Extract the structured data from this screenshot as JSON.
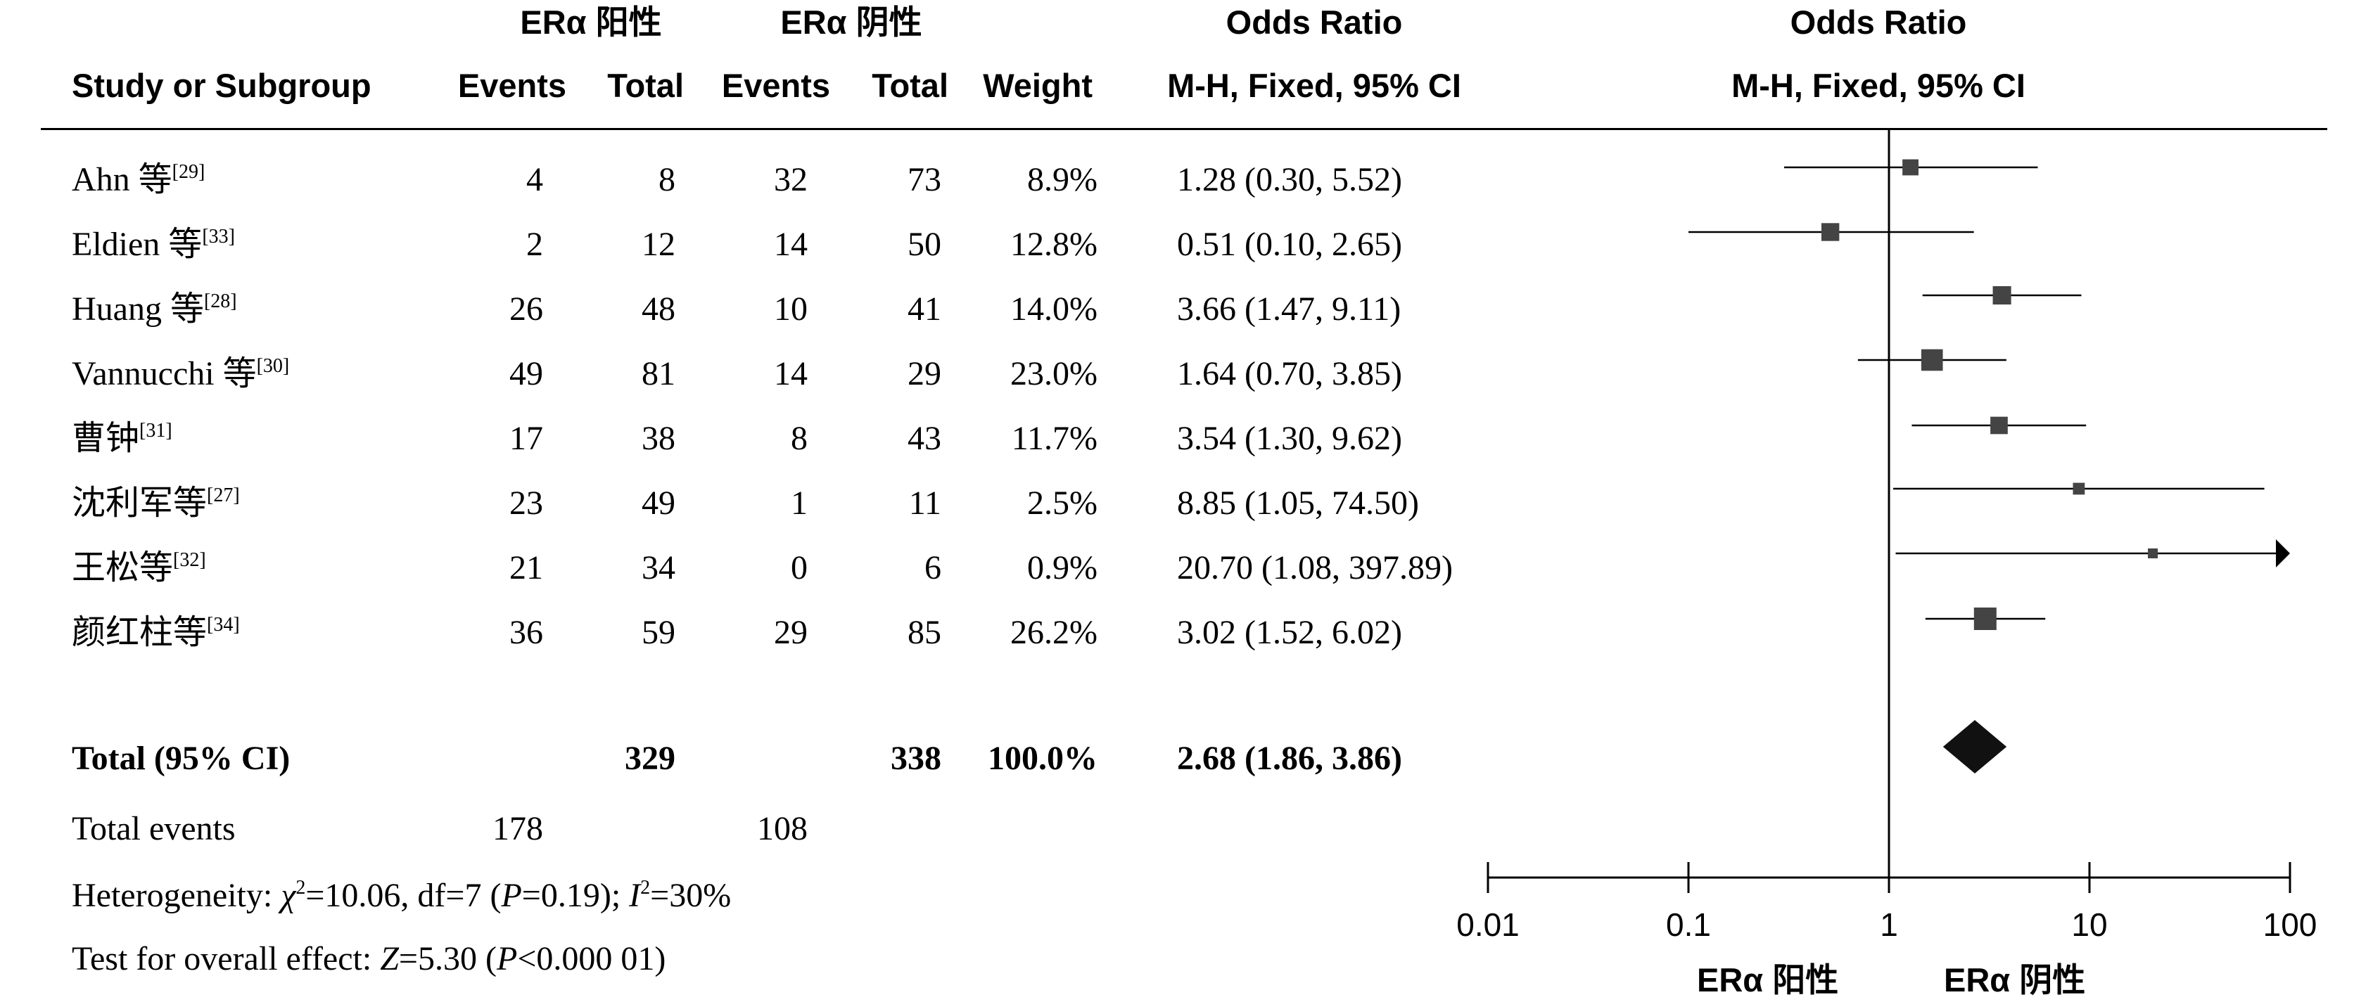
{
  "headers": {
    "group1_top": "ERα 阳性",
    "group2_top": "ERα 阴性",
    "or_top": "Odds Ratio",
    "study": "Study or Subgroup",
    "events1": "Events",
    "total1": "Total",
    "events2": "Events",
    "total2": "Total",
    "weight": "Weight",
    "or_method": "M-H, Fixed, 95% CI",
    "plot_top": "Odds Ratio",
    "plot_method": "M-H, Fixed, 95% CI"
  },
  "studies": [
    {
      "name": "Ahn 等",
      "ref": "[29]",
      "events1": "4",
      "total1": "8",
      "events2": "32",
      "total2": "73",
      "weight": "8.9%",
      "ci": "1.28 (0.30, 5.52)"
    },
    {
      "name": "Eldien 等",
      "ref": "[33]",
      "events1": "2",
      "total1": "12",
      "events2": "14",
      "total2": "50",
      "weight": "12.8%",
      "ci": "0.51 (0.10, 2.65)"
    },
    {
      "name": "Huang 等",
      "ref": "[28]",
      "events1": "26",
      "total1": "48",
      "events2": "10",
      "total2": "41",
      "weight": "14.0%",
      "ci": "3.66 (1.47, 9.11)"
    },
    {
      "name": "Vannucchi 等",
      "ref": "[30]",
      "events1": "49",
      "total1": "81",
      "events2": "14",
      "total2": "29",
      "weight": "23.0%",
      "ci": "1.64 (0.70, 3.85)"
    },
    {
      "name": "曹钟",
      "ref": "[31]",
      "events1": "17",
      "total1": "38",
      "events2": "8",
      "total2": "43",
      "weight": "11.7%",
      "ci": "3.54 (1.30, 9.62)"
    },
    {
      "name": "沈利军等",
      "ref": "[27]",
      "events1": "23",
      "total1": "49",
      "events2": "1",
      "total2": "11",
      "weight": "2.5%",
      "ci": "8.85 (1.05, 74.50)"
    },
    {
      "name": "王松等",
      "ref": "[32]",
      "events1": "21",
      "total1": "34",
      "events2": "0",
      "total2": "6",
      "weight": "0.9%",
      "ci": "20.70 (1.08, 397.89)"
    },
    {
      "name": "颜红柱等",
      "ref": "[34]",
      "events1": "36",
      "total1": "59",
      "events2": "29",
      "total2": "85",
      "weight": "26.2%",
      "ci": "3.02 (1.52, 6.02)"
    }
  ],
  "total": {
    "label": "Total (95% CI)",
    "total1": "329",
    "total2": "338",
    "weight": "100.0%",
    "ci": "2.68 (1.86, 3.86)"
  },
  "total_events": {
    "label": "Total events",
    "events1": "178",
    "events2": "108"
  },
  "heterogeneity": {
    "prefix": "Heterogeneity: ",
    "chi_symbol": "χ",
    "chi_exp": "2",
    "chi_value": "=10.06, df=7 (",
    "p_symbol": "P",
    "p_value": "=0.19); ",
    "i_symbol": "I",
    "i_exp": "2",
    "i_value": "=30%"
  },
  "overall": {
    "prefix": "Test for overall effect: ",
    "z_symbol": "Z",
    "z_value": "=5.30 (",
    "p_symbol": "P",
    "p_value": "<0.000 01)"
  },
  "chart_data": {
    "type": "forest",
    "scale": "log",
    "xlim": [
      0.01,
      100
    ],
    "ticks": [
      "0.01",
      "0.1",
      "1",
      "10",
      "100"
    ],
    "tick_values": [
      0.01,
      0.1,
      1,
      10,
      100
    ],
    "null_line": 1,
    "left_label": "ERα 阳性",
    "right_label": "ERα 阴性",
    "points": [
      {
        "or": 1.28,
        "lo": 0.3,
        "hi": 5.52,
        "weight": 8.9
      },
      {
        "or": 0.51,
        "lo": 0.1,
        "hi": 2.65,
        "weight": 12.8
      },
      {
        "or": 3.66,
        "lo": 1.47,
        "hi": 9.11,
        "weight": 14.0
      },
      {
        "or": 1.64,
        "lo": 0.7,
        "hi": 3.85,
        "weight": 23.0
      },
      {
        "or": 3.54,
        "lo": 1.3,
        "hi": 9.62,
        "weight": 11.7
      },
      {
        "or": 8.85,
        "lo": 1.05,
        "hi": 74.5,
        "weight": 2.5
      },
      {
        "or": 20.7,
        "lo": 1.08,
        "hi": 397.89,
        "weight": 0.9
      },
      {
        "or": 3.02,
        "lo": 1.52,
        "hi": 6.02,
        "weight": 26.2
      }
    ],
    "pooled": {
      "or": 2.68,
      "lo": 1.86,
      "hi": 3.86
    },
    "colors": {
      "marker": "#444444",
      "line": "#000000"
    }
  }
}
